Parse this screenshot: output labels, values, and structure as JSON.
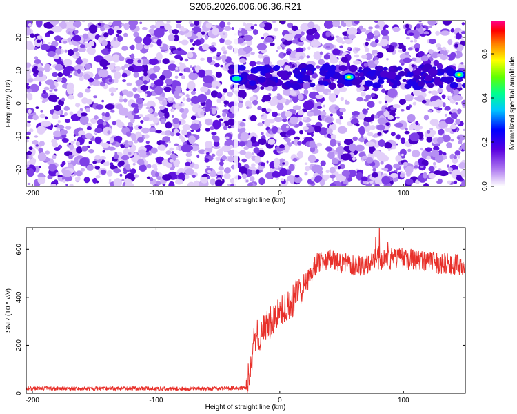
{
  "title": "S206.2026.006.06.36.R21",
  "chart_data": [
    {
      "type": "heatmap",
      "xlabel": "Height of straight line (km)",
      "ylabel": "Frequency (Hz)",
      "xlim": [
        -205,
        150
      ],
      "ylim": [
        -25,
        25
      ],
      "xticks": [
        -200,
        -100,
        0,
        100
      ],
      "yticks": [
        20,
        10,
        0,
        -10,
        -20
      ],
      "colorbar": {
        "label": "Normalized spectral amplitude",
        "range": [
          0,
          0.75
        ],
        "ticks": [
          0.0,
          0.2,
          0.4,
          0.6
        ]
      },
      "band": {
        "frequency_hz": 8,
        "start_km": -40,
        "end_km": 150
      },
      "gap_km": -35,
      "peaks": [
        {
          "x": -35,
          "y": 7.5,
          "value": 0.35
        },
        {
          "x": 56,
          "y": 8,
          "value": 0.45
        },
        {
          "x": 145,
          "y": 8.7,
          "value": 0.55
        }
      ]
    },
    {
      "type": "line",
      "xlabel": "Height of straight line (km)",
      "ylabel": "SNR (10 * v/v)",
      "xlim": [
        -205,
        150
      ],
      "ylim": [
        0,
        690
      ],
      "xticks": [
        -200,
        -100,
        0,
        100
      ],
      "yticks": [
        0,
        200,
        400,
        600
      ],
      "series": [
        {
          "name": "SNR",
          "color": "#e8302a",
          "x": [
            -205,
            -150,
            -100,
            -50,
            -27,
            -20,
            -10,
            0,
            10,
            20,
            30,
            40,
            50,
            60,
            70,
            80,
            90,
            100,
            110,
            120,
            130,
            140,
            150
          ],
          "y": [
            20,
            20,
            20,
            20,
            22,
            230,
            280,
            330,
            380,
            450,
            540,
            555,
            545,
            530,
            540,
            560,
            560,
            560,
            555,
            550,
            540,
            540,
            520
          ]
        }
      ]
    }
  ]
}
